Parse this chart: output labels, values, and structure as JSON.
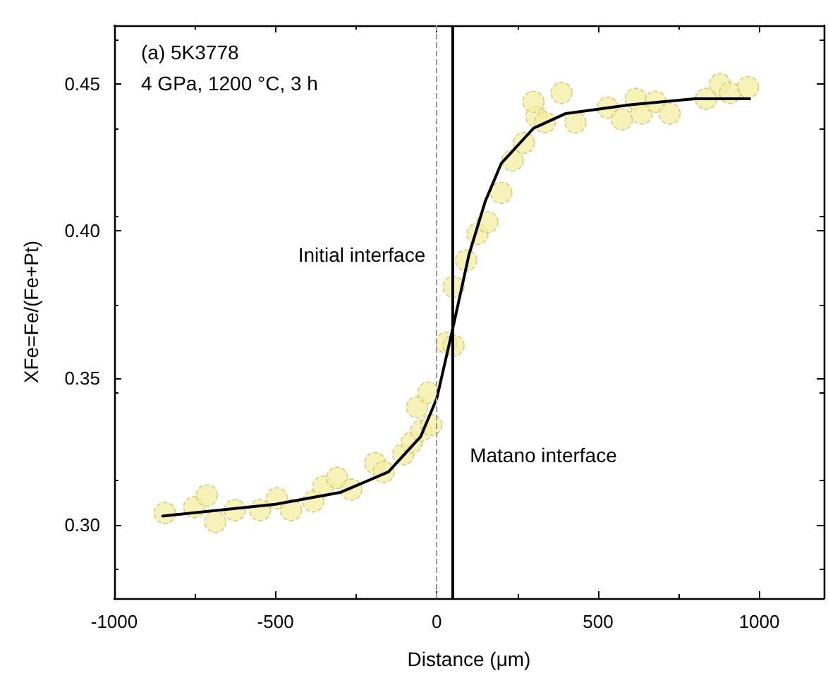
{
  "chart_data": {
    "type": "scatter",
    "xlabel": "Distance (μm)",
    "ylabel": "XFe=Fe/(Fe+Pt)",
    "annotations": [
      "(a) 5K3778",
      "4 GPa, 1200 °C, 3 h"
    ],
    "xlim": [
      -1000,
      1200
    ],
    "xticks": [
      -1000,
      -500,
      0,
      500,
      1000
    ],
    "ylim": [
      0.275,
      0.47
    ],
    "yticks": [
      {
        "value": 0.3,
        "label": "0.30"
      },
      {
        "value": 0.35,
        "label": "0.35"
      },
      {
        "value": 0.4,
        "label": "0.40"
      },
      {
        "value": 0.45,
        "label": "0.45"
      }
    ],
    "grid": false,
    "marker": "circle",
    "ref_lines": [
      {
        "axis": "x",
        "value": 0,
        "label": "Initial interface",
        "color": "#999999",
        "line_style": "dashed"
      },
      {
        "axis": "x",
        "value": 50,
        "label": "Matano interface",
        "color": "#000000",
        "line_style": "solid"
      }
    ],
    "series": [
      {
        "color": "#f3eea0",
        "x": [
          -843,
          -752,
          -713,
          -687,
          -626,
          -548,
          -496,
          -452,
          -383,
          -352,
          -309,
          -265,
          -191,
          -165,
          -104,
          -78,
          -48,
          -17,
          -61,
          -26,
          30,
          52,
          52,
          91,
          126,
          157,
          200,
          235,
          270,
          309,
          300,
          335,
          387,
          430,
          530,
          574,
          617,
          635,
          678,
          722,
          835,
          878,
          909,
          965
        ],
        "values": [
          0.304,
          0.306,
          0.31,
          0.301,
          0.305,
          0.305,
          0.309,
          0.305,
          0.308,
          0.313,
          0.316,
          0.312,
          0.321,
          0.318,
          0.324,
          0.328,
          0.332,
          0.334,
          0.34,
          0.345,
          0.362,
          0.361,
          0.381,
          0.39,
          0.399,
          0.403,
          0.413,
          0.424,
          0.43,
          0.439,
          0.444,
          0.437,
          0.447,
          0.437,
          0.442,
          0.438,
          0.445,
          0.44,
          0.444,
          0.44,
          0.445,
          0.45,
          0.447,
          0.449
        ]
      },
      {
        "type": "line",
        "color": "#000000",
        "marker": "none",
        "line_style": "solid",
        "x": [
          -850,
          -500,
          -300,
          -150,
          -50,
          0,
          50,
          100,
          150,
          200,
          300,
          400,
          600,
          800,
          970
        ],
        "values": [
          0.303,
          0.307,
          0.311,
          0.318,
          0.33,
          0.343,
          0.367,
          0.392,
          0.41,
          0.423,
          0.435,
          0.44,
          0.443,
          0.445,
          0.445
        ]
      }
    ]
  }
}
